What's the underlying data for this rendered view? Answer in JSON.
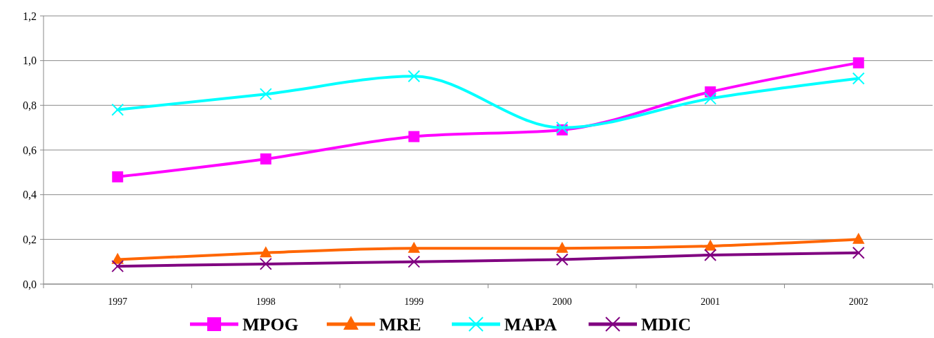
{
  "chart_data": {
    "type": "line",
    "categories": [
      "1997",
      "1998",
      "1999",
      "2000",
      "2001",
      "2002"
    ],
    "series": [
      {
        "name": "MPOG",
        "color": "#ff00ff",
        "marker": "square",
        "values": [
          0.48,
          0.56,
          0.66,
          0.69,
          0.86,
          0.99
        ]
      },
      {
        "name": "MRE",
        "color": "#ff6600",
        "marker": "triangle",
        "values": [
          0.11,
          0.14,
          0.16,
          0.16,
          0.17,
          0.2
        ]
      },
      {
        "name": "MAPA",
        "color": "#00ffff",
        "marker": "cross",
        "values": [
          0.78,
          0.85,
          0.93,
          0.7,
          0.83,
          0.92
        ]
      },
      {
        "name": "MDIC",
        "color": "#800080",
        "marker": "cross",
        "values": [
          0.08,
          0.09,
          0.1,
          0.11,
          0.13,
          0.14
        ]
      }
    ],
    "ylim": [
      0,
      1.2
    ],
    "yticks": [
      {
        "value": 0,
        "label": "0,0"
      },
      {
        "value": 0.2,
        "label": "0,2"
      },
      {
        "value": 0.4,
        "label": "0,4"
      },
      {
        "value": 0.6,
        "label": "0,6"
      },
      {
        "value": 0.8,
        "label": "0,8"
      },
      {
        "value": 1,
        "label": "1,0"
      },
      {
        "value": 1.2,
        "label": "1,2"
      }
    ],
    "grid": "y",
    "legend": "bottom",
    "line_style": "solid"
  }
}
